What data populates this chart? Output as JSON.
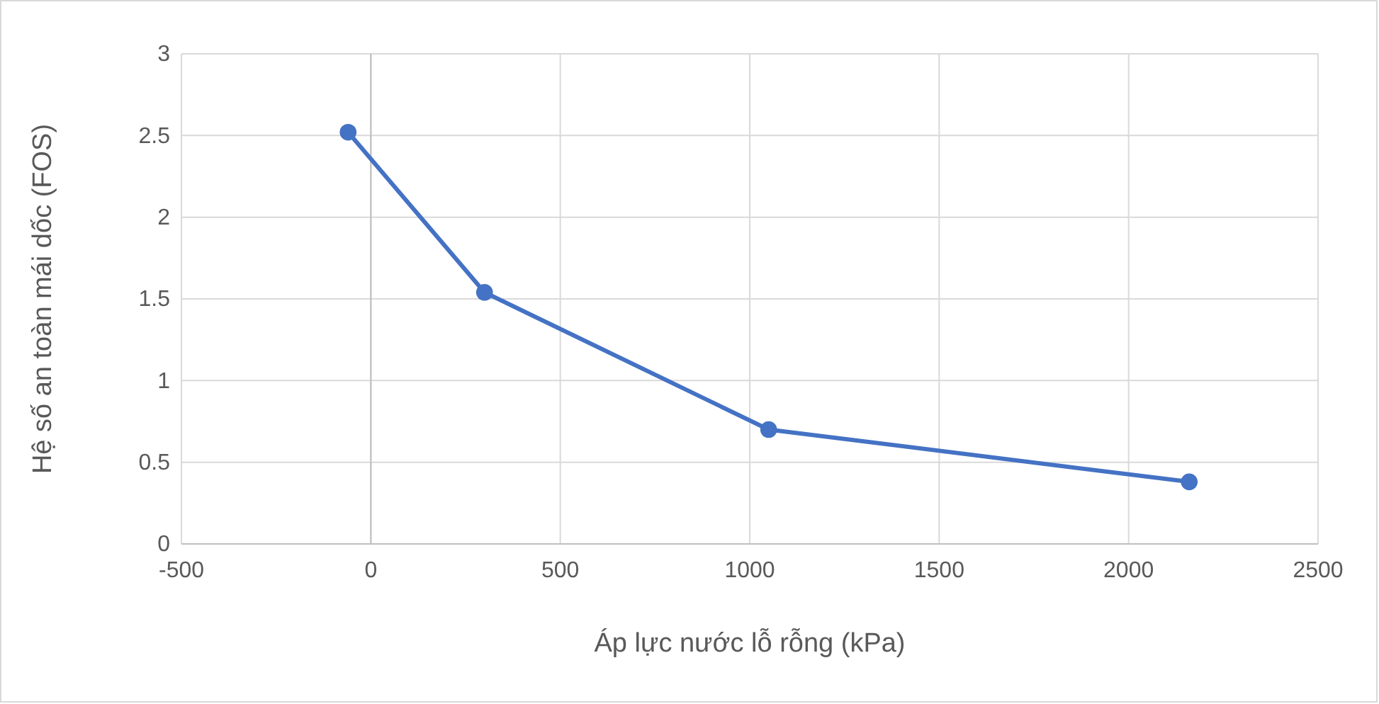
{
  "chart_data": {
    "type": "line",
    "xlabel": "Áp lực nước lỗ rỗng (kPa)",
    "ylabel": "Hệ số an toàn mái dốc (FOS)",
    "x": [
      -60,
      300,
      1050,
      2160
    ],
    "series": [
      {
        "color": "#4472c4",
        "values": [
          2.52,
          1.54,
          0.7,
          0.38
        ]
      }
    ],
    "xlim": [
      -500,
      2500
    ],
    "xticks": [
      -500,
      0,
      500,
      1000,
      1500,
      2000,
      2500
    ],
    "ylim": [
      0,
      3
    ],
    "yticks": [
      0,
      0.5,
      1,
      1.5,
      2,
      2.5,
      3
    ],
    "grid": true,
    "marker": "circle",
    "line_style": "solid",
    "legend": false
  }
}
